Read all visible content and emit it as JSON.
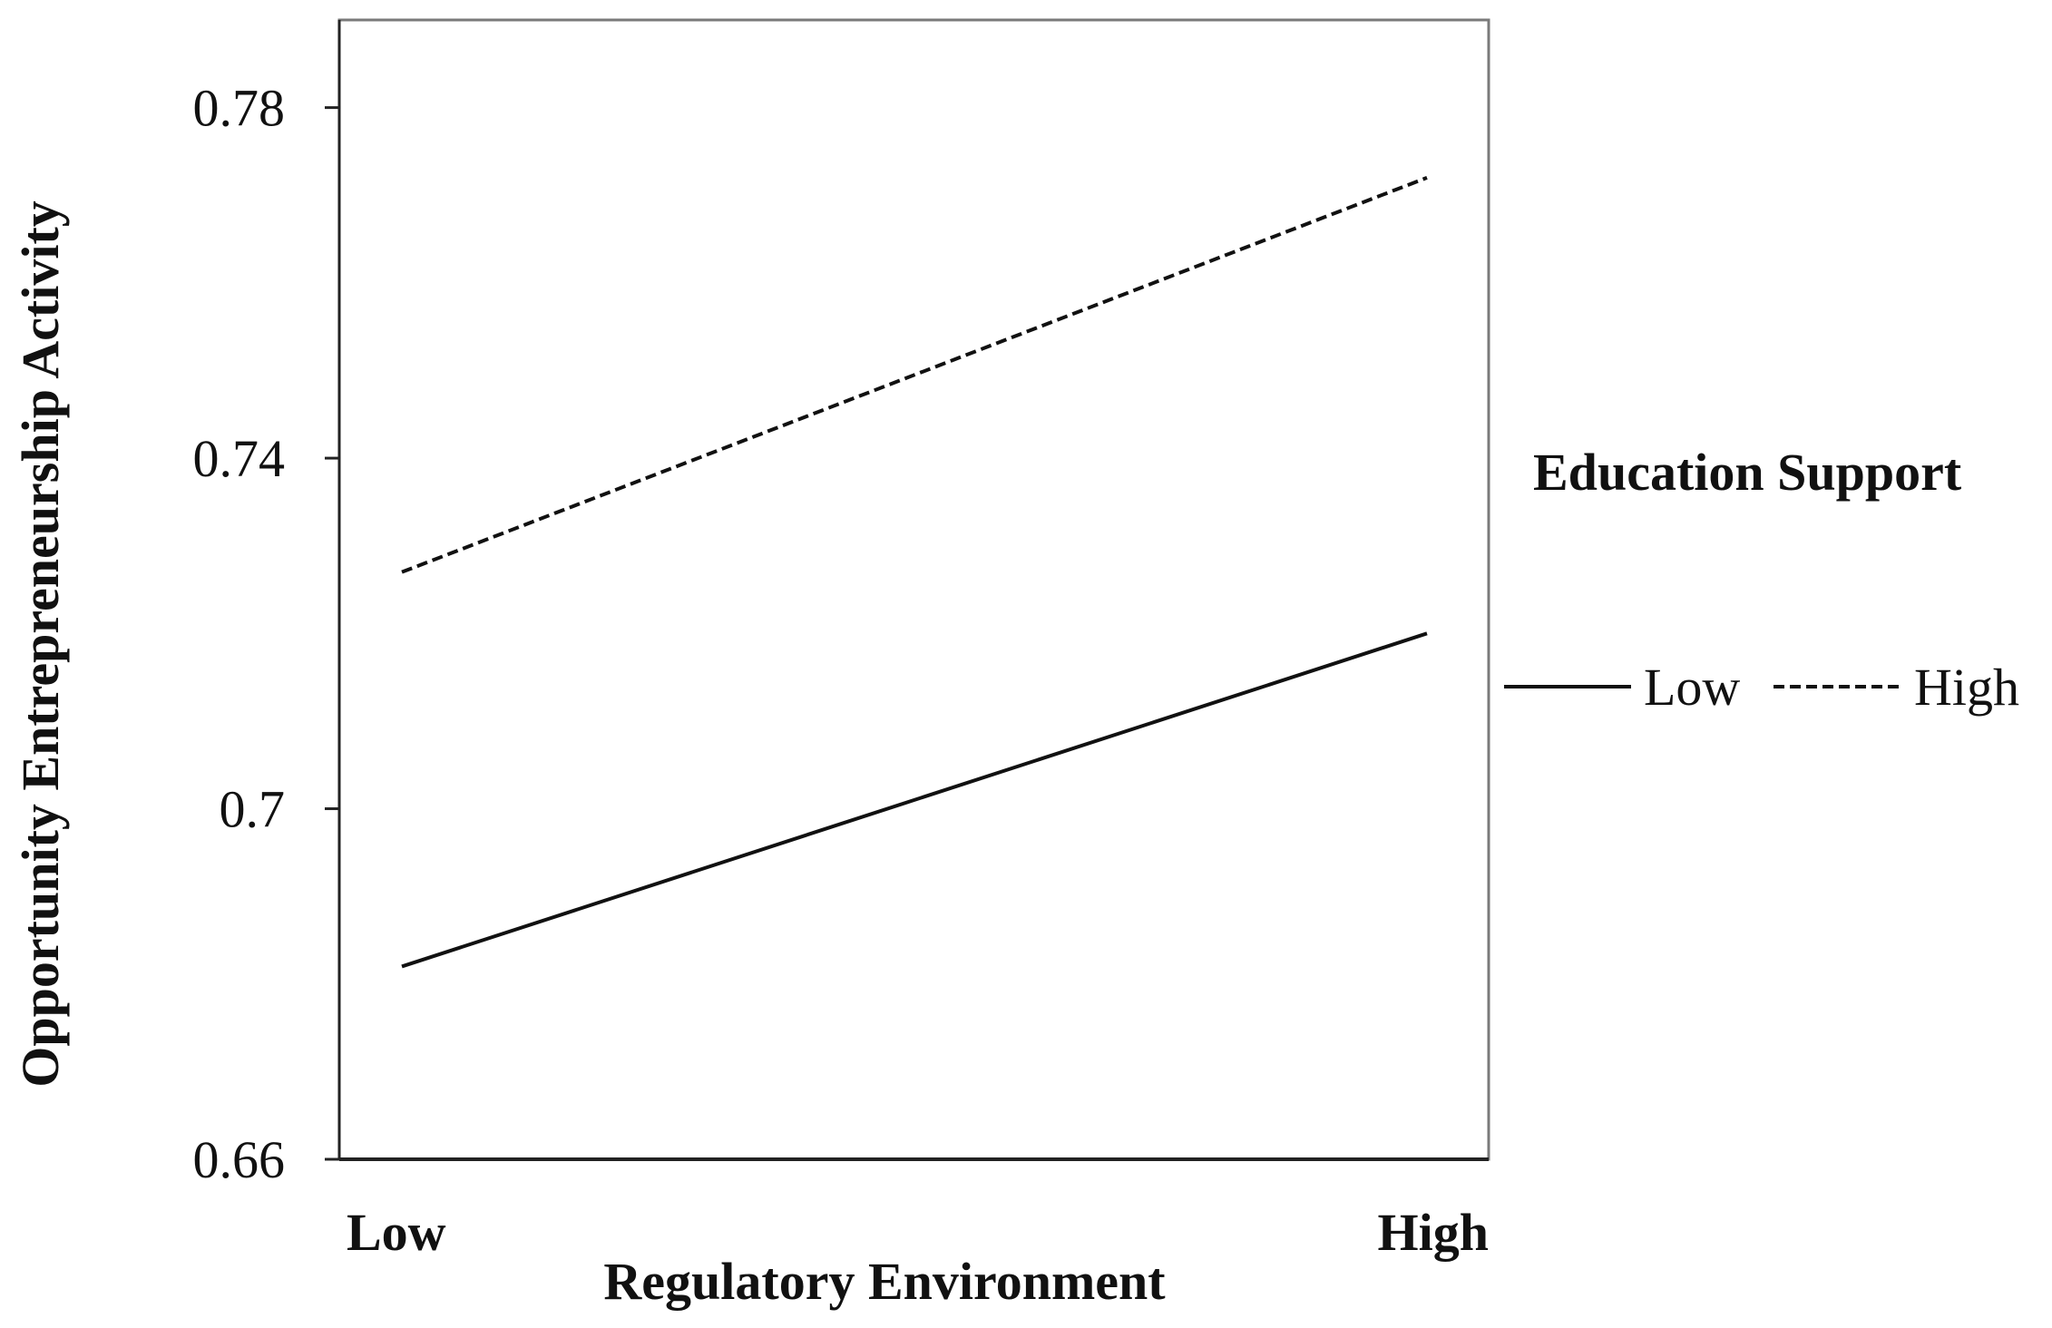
{
  "chart_data": {
    "type": "line",
    "categories": [
      "Low",
      "High"
    ],
    "xlabel": "Regulatory Environment",
    "ylabel": "Opportunity Entrepreneurship Activity",
    "ylim": [
      0.66,
      0.79
    ],
    "yticks": [
      "0.66",
      "0.7",
      "0.74",
      "0.78"
    ],
    "ytick_values": [
      0.66,
      0.7,
      0.74,
      0.78
    ],
    "grid": false,
    "legend": {
      "title": "Education Support",
      "placement": "right"
    },
    "series": [
      {
        "name": "Low",
        "values": [
          0.682,
          0.72
        ],
        "style": "solid",
        "color": "#111111"
      },
      {
        "name": "High",
        "values": [
          0.727,
          0.772
        ],
        "style": "dashed",
        "color": "#111111"
      }
    ]
  }
}
